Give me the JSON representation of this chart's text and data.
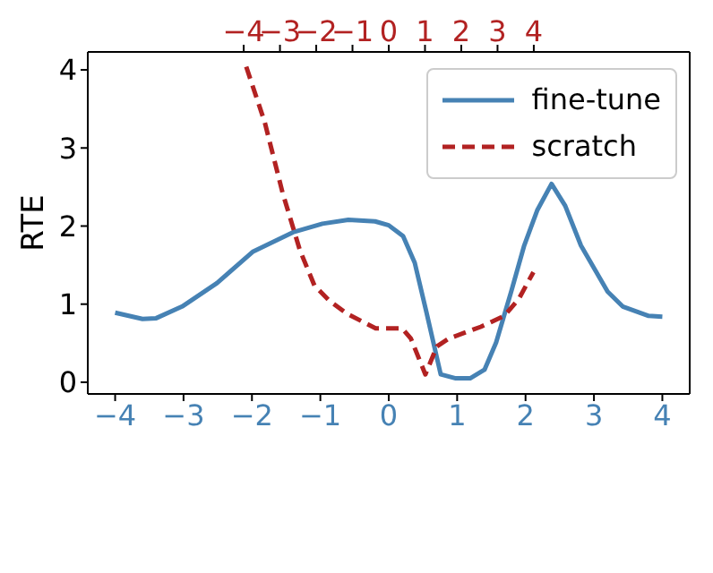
{
  "chart_data": {
    "type": "line",
    "ylabel": "RTE",
    "xlim": [
      -4.4,
      4.4
    ],
    "xticks": [
      -4,
      -3,
      -2,
      -1,
      0,
      1,
      2,
      3,
      4
    ],
    "x2lim": [
      -8.3,
      8.3
    ],
    "x2ticks": [
      -4,
      -3,
      -2,
      -1,
      0,
      1,
      2,
      3,
      4
    ],
    "ylim": [
      -0.15,
      4.23
    ],
    "yticks": [
      0,
      1,
      2,
      3,
      4
    ],
    "legend": "top right",
    "marker": "none",
    "series": [
      {
        "name": "fine-tune",
        "color": "#4682b4",
        "line_style": "solid",
        "x": [
          -4,
          -3.6,
          -3.4,
          -3.02,
          -2.51,
          -1.99,
          -1.4,
          -0.97,
          -0.59,
          -0.2,
          0,
          0.21,
          0.38,
          0.55,
          0.76,
          0.98,
          1.19,
          1.4,
          1.57,
          1.79,
          1.98,
          2.17,
          2.38,
          2.58,
          2.81,
          3.2,
          3.42,
          3.8,
          4
        ],
        "values": [
          0.89,
          0.81,
          0.82,
          0.97,
          1.27,
          1.67,
          1.92,
          2.03,
          2.08,
          2.06,
          2.01,
          1.87,
          1.53,
          0.9,
          0.1,
          0.05,
          0.05,
          0.16,
          0.51,
          1.16,
          1.75,
          2.2,
          2.54,
          2.26,
          1.75,
          1.16,
          0.97,
          0.85,
          0.84
        ]
      },
      {
        "name": "scratch",
        "color": "#b22222",
        "line_style": "dashed",
        "axis": "x2",
        "x": [
          -3.93,
          -3.42,
          -2.93,
          -2.45,
          -2.05,
          -1.65,
          -1.16,
          -0.36,
          0.37,
          0.61,
          1.01,
          1.33,
          1.66,
          2.54,
          3.19,
          3.59,
          3.99
        ],
        "values": [
          4.04,
          3.33,
          2.43,
          1.69,
          1.24,
          1.05,
          0.88,
          0.69,
          0.69,
          0.56,
          0.1,
          0.46,
          0.56,
          0.71,
          0.85,
          1.07,
          1.41
        ]
      }
    ]
  }
}
